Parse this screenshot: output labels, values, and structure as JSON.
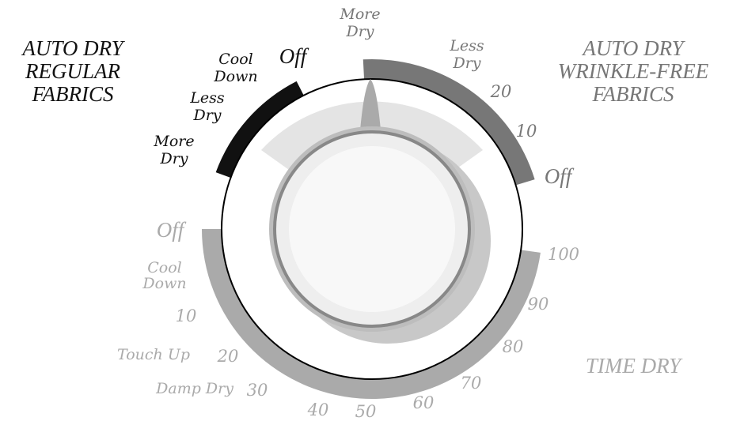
{
  "regular": {
    "title": [
      "AUTO DRY",
      "REGULAR",
      "FABRICS"
    ],
    "labels": [
      [
        "Cool",
        "Down"
      ],
      [
        "Off"
      ],
      [
        "Less",
        "Dry"
      ],
      [
        "More",
        "Dry"
      ]
    ]
  },
  "wrinkle_free": {
    "title": [
      "AUTO DRY",
      "WRINKLE-FREE",
      "FABRICS"
    ],
    "labels": [
      [
        "More",
        "Dry"
      ],
      [
        "Less",
        "Dry"
      ],
      [
        "20"
      ],
      [
        "10"
      ],
      [
        "Off"
      ]
    ]
  },
  "time_dry": {
    "title": "TIME DRY",
    "labels": [
      [
        "Off"
      ],
      [
        "Cool",
        "Down"
      ],
      [
        "10"
      ],
      [
        "Touch Up"
      ],
      [
        "20"
      ],
      [
        "Damp Dry"
      ],
      [
        "30"
      ],
      [
        "40"
      ],
      [
        "50"
      ],
      [
        "60"
      ],
      [
        "70"
      ],
      [
        "80"
      ],
      [
        "90"
      ],
      [
        "100"
      ]
    ]
  }
}
